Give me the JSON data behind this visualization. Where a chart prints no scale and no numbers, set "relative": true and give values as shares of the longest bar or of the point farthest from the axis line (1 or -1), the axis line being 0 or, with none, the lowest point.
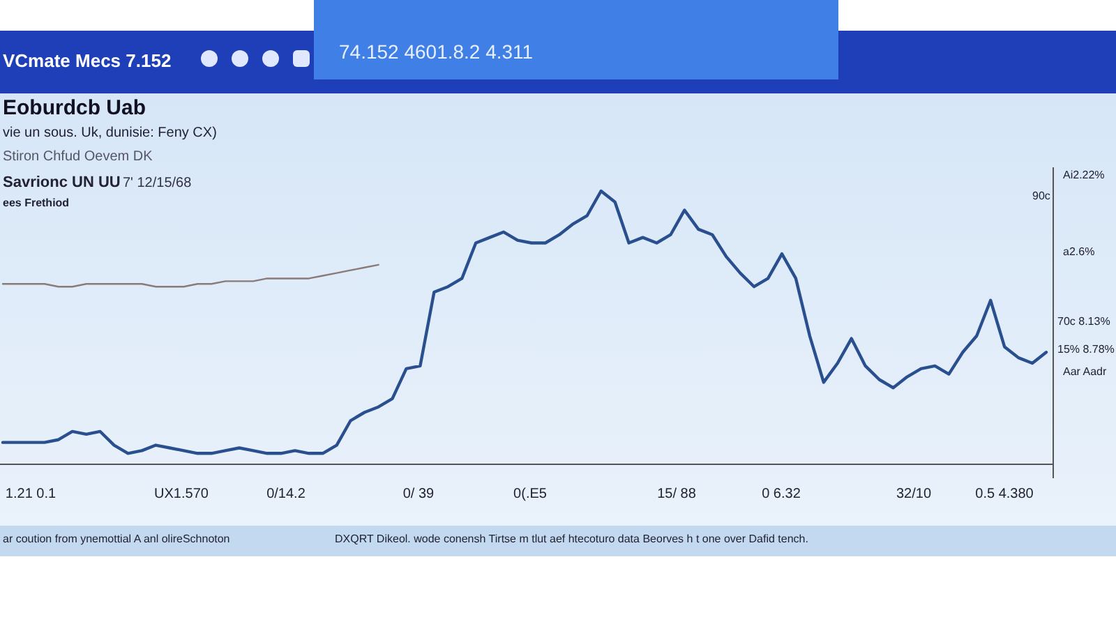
{
  "chart_data": {
    "type": "line",
    "relative": true,
    "title": "Eoburdcb Uab",
    "subtitle": "vie un sous. Uk, dunisie: Feny CX)",
    "categories": [
      null,
      null,
      null,
      null,
      null,
      null,
      null,
      null,
      null,
      null,
      null,
      null,
      null,
      null,
      null,
      null,
      null,
      null,
      null,
      null,
      null,
      null,
      null,
      null,
      null,
      null,
      null,
      null,
      null,
      null,
      null,
      null,
      null,
      null,
      null,
      null,
      null,
      null,
      null,
      null,
      null,
      null,
      null,
      null,
      null,
      null,
      null,
      null,
      null,
      null,
      null,
      null,
      null,
      null,
      null,
      null,
      null,
      null,
      null,
      null,
      null,
      null,
      null,
      null,
      null,
      null,
      null,
      null,
      null,
      null,
      null,
      null,
      null,
      null,
      null,
      null
    ],
    "series": [
      {
        "color": "#2a4f8f",
        "values": [
          0.08,
          0.08,
          0.08,
          0.08,
          0.09,
          0.12,
          0.11,
          0.12,
          0.07,
          0.04,
          0.05,
          0.07,
          0.06,
          0.05,
          0.04,
          0.04,
          0.05,
          0.06,
          0.05,
          0.04,
          0.04,
          0.05,
          0.04,
          0.04,
          0.07,
          0.16,
          0.19,
          0.21,
          0.24,
          0.35,
          0.36,
          0.63,
          0.65,
          0.68,
          0.81,
          0.83,
          0.85,
          0.82,
          0.81,
          0.81,
          0.84,
          0.88,
          0.91,
          1,
          0.96,
          0.81,
          0.83,
          0.81,
          0.84,
          0.93,
          0.86,
          0.84,
          0.76,
          0.7,
          0.65,
          0.68,
          0.77,
          0.68,
          0.47,
          0.3,
          0.37,
          0.46,
          0.36,
          0.31,
          0.28,
          0.32,
          0.35,
          0.36,
          0.33,
          0.41,
          0.47,
          0.6,
          0.43,
          0.39,
          0.37,
          0.41
        ]
      },
      {
        "color": "#8a7a78",
        "values": [
          0.66,
          0.66,
          0.66,
          0.66,
          0.65,
          0.65,
          0.66,
          0.66,
          0.66,
          0.66,
          0.66,
          0.65,
          0.65,
          0.65,
          0.66,
          0.66,
          0.67,
          0.67,
          0.67,
          0.68,
          0.68,
          0.68,
          0.68,
          0.69,
          0.7,
          0.71,
          0.72,
          0.73,
          null,
          null,
          null,
          null,
          null,
          null,
          null,
          null,
          null,
          null,
          null,
          null,
          null,
          null,
          null,
          null,
          null,
          null,
          null,
          null,
          null,
          null,
          null,
          null,
          null,
          null,
          null,
          null,
          null,
          null,
          null,
          null,
          null,
          null,
          null,
          null,
          null,
          null,
          null,
          null,
          null,
          null,
          null,
          null,
          null,
          null,
          null,
          null
        ]
      }
    ],
    "annotations": [
      "VCmate Mecs 7.152",
      "74.152 4601.8.2 4.311",
      "Stiron Chfud Oevem DK",
      "Savrionc UN UU",
      "7' 12/15/68",
      "ees Frethiod",
      "ar coution from ynemottial A anl olireSchnoton",
      "DXQRT Dikeol. wode conensh Tirtse m tlut aef htecoturo data Beorves h t one over Dafid tench.",
      "Ai2.22%",
      "90c",
      "a2.6%",
      "70c 8.13%",
      "15% 8.78%",
      "Aar Aadr",
      "1.21 0.1",
      "UX1.570",
      "0/14.2",
      "0/ 39",
      "0(.E5",
      "15/ 88",
      "0 6.32",
      "32/10",
      "0.5 4.380"
    ]
  }
}
